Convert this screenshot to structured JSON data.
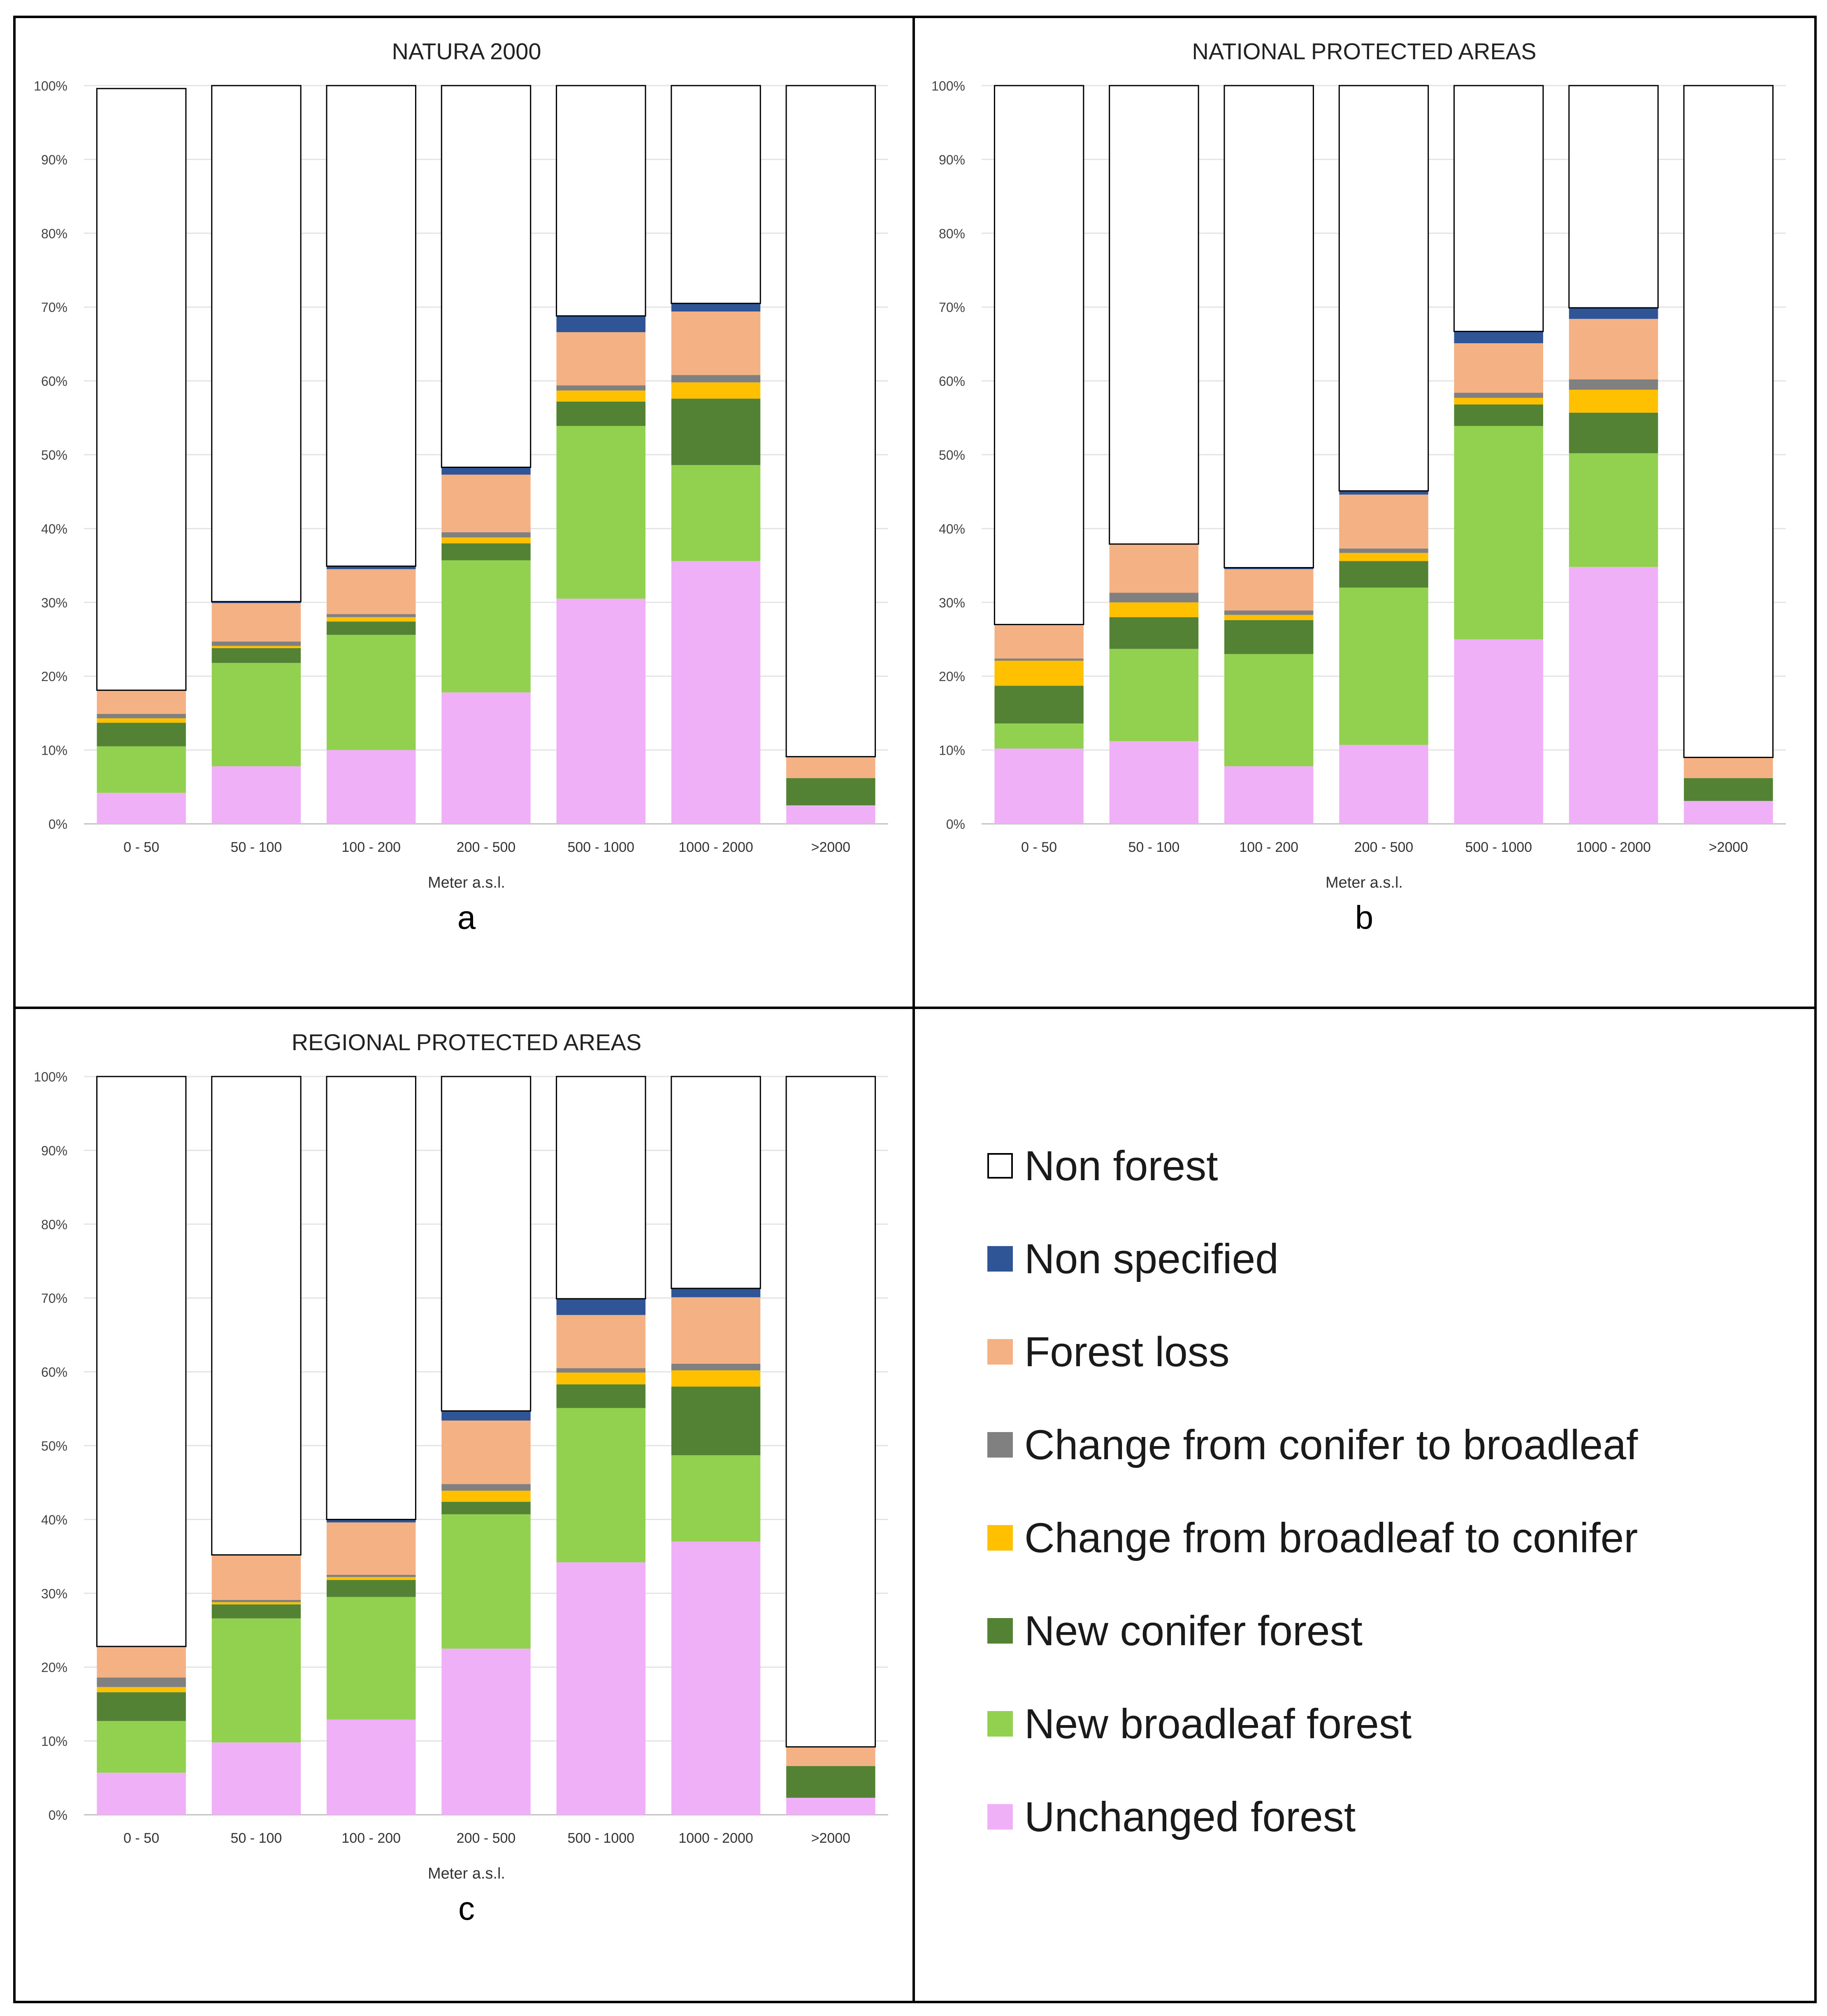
{
  "colors": {
    "non_forest": "#ffffff",
    "non_specified": "#2f5597",
    "forest_loss": "#f4b183",
    "conifer_to_broadleaf": "#808080",
    "broadleaf_to_conifer": "#ffc000",
    "new_conifer": "#548235",
    "new_broadleaf": "#92d050",
    "unchanged": "#f0b0f8"
  },
  "legend": [
    {
      "key": "non_forest",
      "label": "Non forest"
    },
    {
      "key": "non_specified",
      "label": "Non specified"
    },
    {
      "key": "forest_loss",
      "label": "Forest loss"
    },
    {
      "key": "conifer_to_broadleaf",
      "label": "Change from conifer to broadleaf"
    },
    {
      "key": "broadleaf_to_conifer",
      "label": "Change from broadleaf to conifer"
    },
    {
      "key": "new_conifer",
      "label": "New conifer forest"
    },
    {
      "key": "new_broadleaf",
      "label": "New broadleaf forest"
    },
    {
      "key": "unchanged",
      "label": "Unchanged forest"
    }
  ],
  "chart_data": [
    {
      "type": "bar",
      "stacked": true,
      "panel": "a",
      "title": "NATURA 2000",
      "xlabel": "Meter a.s.l.",
      "ylabel": "",
      "ylim": [
        0,
        100
      ],
      "yticks": [
        "0%",
        "10%",
        "20%",
        "30%",
        "40%",
        "50%",
        "60%",
        "70%",
        "80%",
        "90%",
        "100%"
      ],
      "categories": [
        "0 - 50",
        "50 - 100",
        "100 - 200",
        "200 - 500",
        "500 - 1000",
        "1000 - 2000",
        ">2000"
      ],
      "series": [
        {
          "name": "Unchanged forest",
          "key": "unchanged",
          "values": [
            4.2,
            7.8,
            10.0,
            17.8,
            30.5,
            35.6,
            2.5
          ]
        },
        {
          "name": "New broadleaf forest",
          "key": "new_broadleaf",
          "values": [
            6.3,
            14.0,
            15.6,
            17.9,
            23.4,
            13.0,
            0.0
          ]
        },
        {
          "name": "New conifer forest",
          "key": "new_conifer",
          "values": [
            3.2,
            2.0,
            1.8,
            2.3,
            3.3,
            9.0,
            3.7
          ]
        },
        {
          "name": "Change from broadleaf to conifer",
          "key": "broadleaf_to_conifer",
          "values": [
            0.6,
            0.3,
            0.6,
            0.8,
            1.5,
            2.2,
            0.0
          ]
        },
        {
          "name": "Change from conifer to broadleaf",
          "key": "conifer_to_broadleaf",
          "values": [
            0.6,
            0.6,
            0.4,
            0.7,
            0.7,
            1.0,
            0.0
          ]
        },
        {
          "name": "Forest loss",
          "key": "forest_loss",
          "values": [
            3.2,
            5.2,
            6.1,
            7.8,
            7.2,
            8.6,
            2.9
          ]
        },
        {
          "name": "Non specified",
          "key": "non_specified",
          "values": [
            0.0,
            0.2,
            0.4,
            1.0,
            2.2,
            1.1,
            0.0
          ]
        },
        {
          "name": "Non forest",
          "key": "non_forest",
          "values": [
            81.5,
            69.9,
            65.1,
            51.7,
            31.2,
            29.5,
            90.9
          ]
        }
      ]
    },
    {
      "type": "bar",
      "stacked": true,
      "panel": "b",
      "title": "NATIONAL PROTECTED AREAS",
      "xlabel": "Meter a.s.l.",
      "ylabel": "",
      "ylim": [
        0,
        100
      ],
      "yticks": [
        "0%",
        "10%",
        "20%",
        "30%",
        "40%",
        "50%",
        "60%",
        "70%",
        "80%",
        "90%",
        "100%"
      ],
      "categories": [
        "0 - 50",
        "50 - 100",
        "100 - 200",
        "200 - 500",
        "500 - 1000",
        "1000 - 2000",
        ">2000"
      ],
      "series": [
        {
          "name": "Unchanged forest",
          "key": "unchanged",
          "values": [
            10.2,
            11.2,
            7.8,
            10.7,
            25.0,
            34.8,
            3.1
          ]
        },
        {
          "name": "New broadleaf forest",
          "key": "new_broadleaf",
          "values": [
            3.4,
            12.5,
            15.2,
            21.3,
            28.9,
            15.4,
            0.0
          ]
        },
        {
          "name": "New conifer forest",
          "key": "new_conifer",
          "values": [
            5.1,
            4.3,
            4.6,
            3.6,
            2.9,
            5.5,
            3.1
          ]
        },
        {
          "name": "Change from broadleaf to conifer",
          "key": "broadleaf_to_conifer",
          "values": [
            3.4,
            2.0,
            0.7,
            1.1,
            0.9,
            3.1,
            0.0
          ]
        },
        {
          "name": "Change from conifer to broadleaf",
          "key": "conifer_to_broadleaf",
          "values": [
            0.3,
            1.3,
            0.6,
            0.6,
            0.7,
            1.4,
            0.0
          ]
        },
        {
          "name": "Forest loss",
          "key": "forest_loss",
          "values": [
            4.6,
            6.6,
            5.6,
            7.3,
            6.7,
            8.2,
            2.8
          ]
        },
        {
          "name": "Non specified",
          "key": "non_specified",
          "values": [
            0.0,
            0.0,
            0.2,
            0.5,
            1.6,
            1.5,
            0.0
          ]
        },
        {
          "name": "Non forest",
          "key": "non_forest",
          "values": [
            73.0,
            62.1,
            65.3,
            54.9,
            33.3,
            30.1,
            91.0
          ]
        }
      ]
    },
    {
      "type": "bar",
      "stacked": true,
      "panel": "c",
      "title": "REGIONAL PROTECTED AREAS",
      "xlabel": "Meter a.s.l.",
      "ylabel": "",
      "ylim": [
        0,
        100
      ],
      "yticks": [
        "0%",
        "10%",
        "20%",
        "30%",
        "40%",
        "50%",
        "60%",
        "70%",
        "80%",
        "90%",
        "100%"
      ],
      "categories": [
        "0 - 50",
        "50 - 100",
        "100 - 200",
        "200 - 500",
        "500 - 1000",
        "1000 - 2000",
        ">2000"
      ],
      "series": [
        {
          "name": "Unchanged forest",
          "key": "unchanged",
          "values": [
            5.7,
            9.8,
            12.9,
            22.5,
            34.2,
            37.0,
            2.3
          ]
        },
        {
          "name": "New broadleaf forest",
          "key": "new_broadleaf",
          "values": [
            7.0,
            16.8,
            16.6,
            18.2,
            20.9,
            11.7,
            0.0
          ]
        },
        {
          "name": "New conifer forest",
          "key": "new_conifer",
          "values": [
            3.9,
            1.9,
            2.3,
            1.7,
            3.2,
            9.3,
            4.3
          ]
        },
        {
          "name": "Change from broadleaf to conifer",
          "key": "broadleaf_to_conifer",
          "values": [
            0.7,
            0.3,
            0.4,
            1.5,
            1.6,
            2.2,
            0.0
          ]
        },
        {
          "name": "Change from conifer to broadleaf",
          "key": "conifer_to_broadleaf",
          "values": [
            1.3,
            0.3,
            0.3,
            0.9,
            0.6,
            0.9,
            0.0
          ]
        },
        {
          "name": "Forest loss",
          "key": "forest_loss",
          "values": [
            4.2,
            6.1,
            7.1,
            8.6,
            7.2,
            9.0,
            2.6
          ]
        },
        {
          "name": "Non specified",
          "key": "non_specified",
          "values": [
            0.0,
            0.0,
            0.4,
            1.3,
            2.2,
            1.2,
            0.0
          ]
        },
        {
          "name": "Non forest",
          "key": "non_forest",
          "values": [
            77.2,
            64.8,
            60.0,
            45.3,
            30.1,
            28.7,
            90.8
          ]
        }
      ]
    }
  ]
}
